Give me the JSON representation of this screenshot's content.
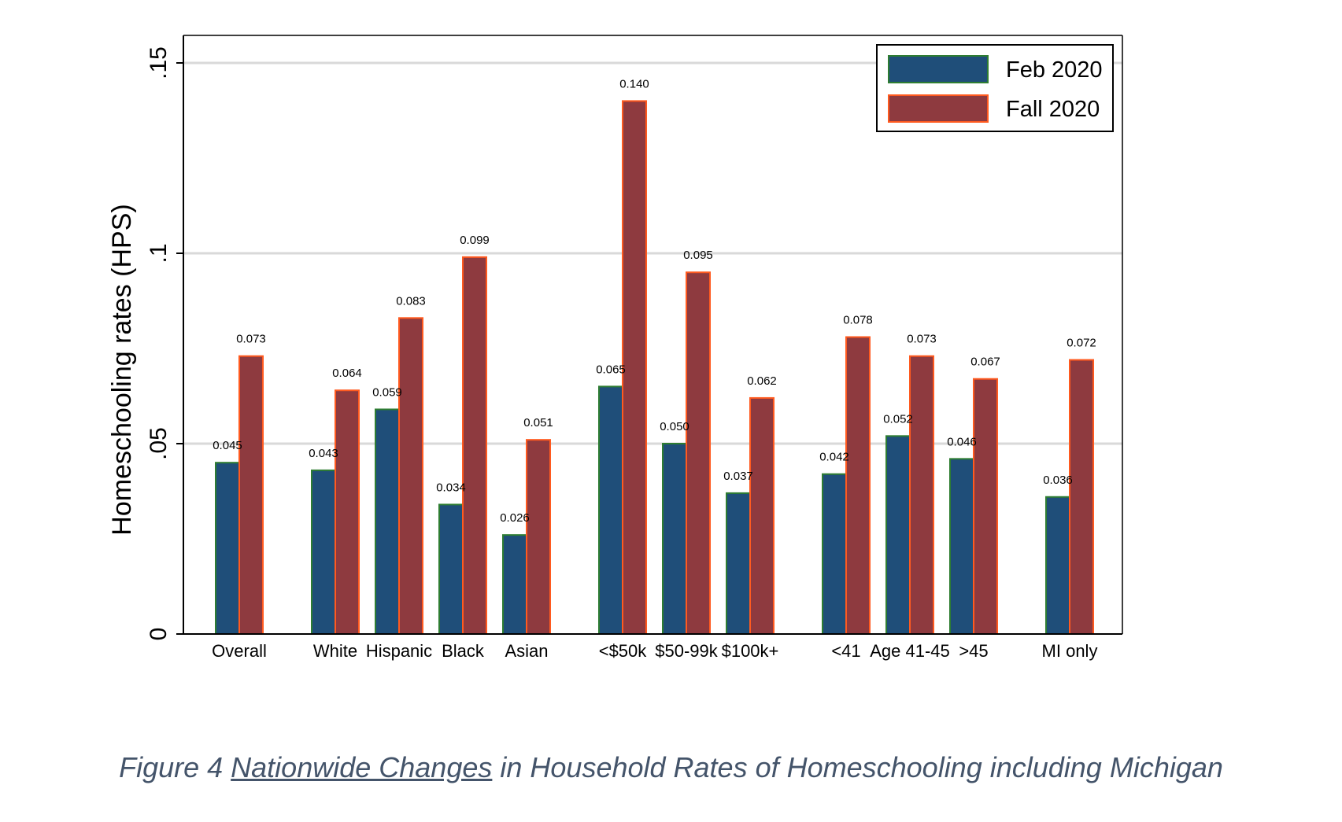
{
  "chart_data": {
    "type": "bar",
    "ylabel": "Homeschooling rates (HPS)",
    "ylim": [
      0,
      0.15
    ],
    "yticks": [
      {
        "value": 0,
        "label": "0"
      },
      {
        "value": 0.05,
        "label": ".05"
      },
      {
        "value": 0.1,
        "label": ".1"
      },
      {
        "value": 0.15,
        "label": ".15"
      }
    ],
    "grid": true,
    "legend_position": "top-right",
    "groups": [
      [
        "Overall"
      ],
      [
        "White",
        "Hispanic",
        "Black",
        "Asian"
      ],
      [
        "<$50k",
        "$50-99k",
        "$100k+"
      ],
      [
        "<41",
        "Age 41-45",
        ">45"
      ],
      [
        "MI only"
      ]
    ],
    "categories": [
      "Overall",
      "White",
      "Hispanic",
      "Black",
      "Asian",
      "<$50k",
      "$50-99k",
      "$100k+",
      "<41",
      "Age 41-45",
      ">45",
      "MI only"
    ],
    "series": [
      {
        "name": "Feb 2020",
        "color": "#1f4e79",
        "edge": "#2e7d32",
        "values": [
          0.045,
          0.043,
          0.059,
          0.034,
          0.026,
          0.065,
          0.05,
          0.037,
          0.042,
          0.052,
          0.046,
          0.036
        ],
        "labels": [
          "0.045",
          "0.043",
          "0.059",
          "0.034",
          "0.026",
          "0.065",
          "0.050",
          "0.037",
          "0.042",
          "0.052",
          "0.046",
          "0.036"
        ]
      },
      {
        "name": "Fall 2020",
        "color": "#8e3a3f",
        "edge": "#ff5a1f",
        "values": [
          0.073,
          0.064,
          0.083,
          0.099,
          0.051,
          0.14,
          0.095,
          0.062,
          0.078,
          0.073,
          0.067,
          0.072
        ],
        "labels": [
          "0.073",
          "0.064",
          "0.083",
          "0.099",
          "0.051",
          "0.140",
          "0.095",
          "0.062",
          "0.078",
          "0.073",
          "0.067",
          "0.072"
        ]
      }
    ]
  },
  "caption": {
    "prefix": "Figure 4 ",
    "underlined": "Nationwide Changes",
    "suffix": " in Household Rates of Homeschooling including Michigan"
  }
}
